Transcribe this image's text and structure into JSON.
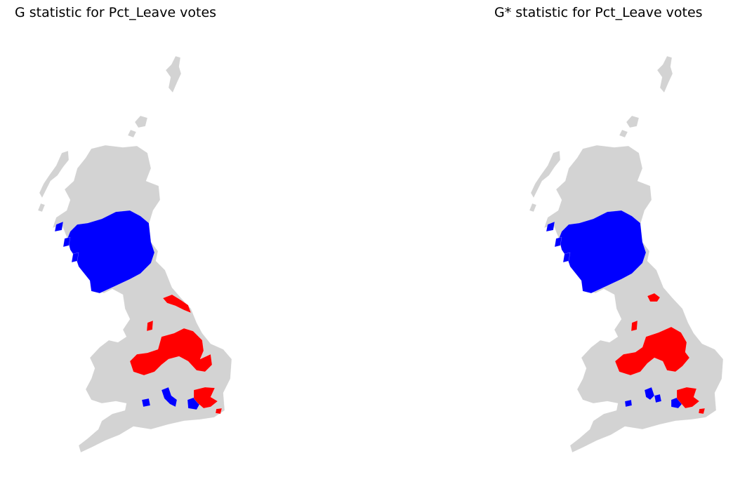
{
  "panels": [
    {
      "title": "G statistic for Pct_Leave votes",
      "legend": null
    },
    {
      "title": "G* statistic for Pct_Leave votes",
      "legend": null
    }
  ],
  "colors": {
    "land": "#d3d3d3",
    "hot_spot": "#ff0000",
    "cold_spot": "#0000ff",
    "background": "#ffffff"
  }
}
